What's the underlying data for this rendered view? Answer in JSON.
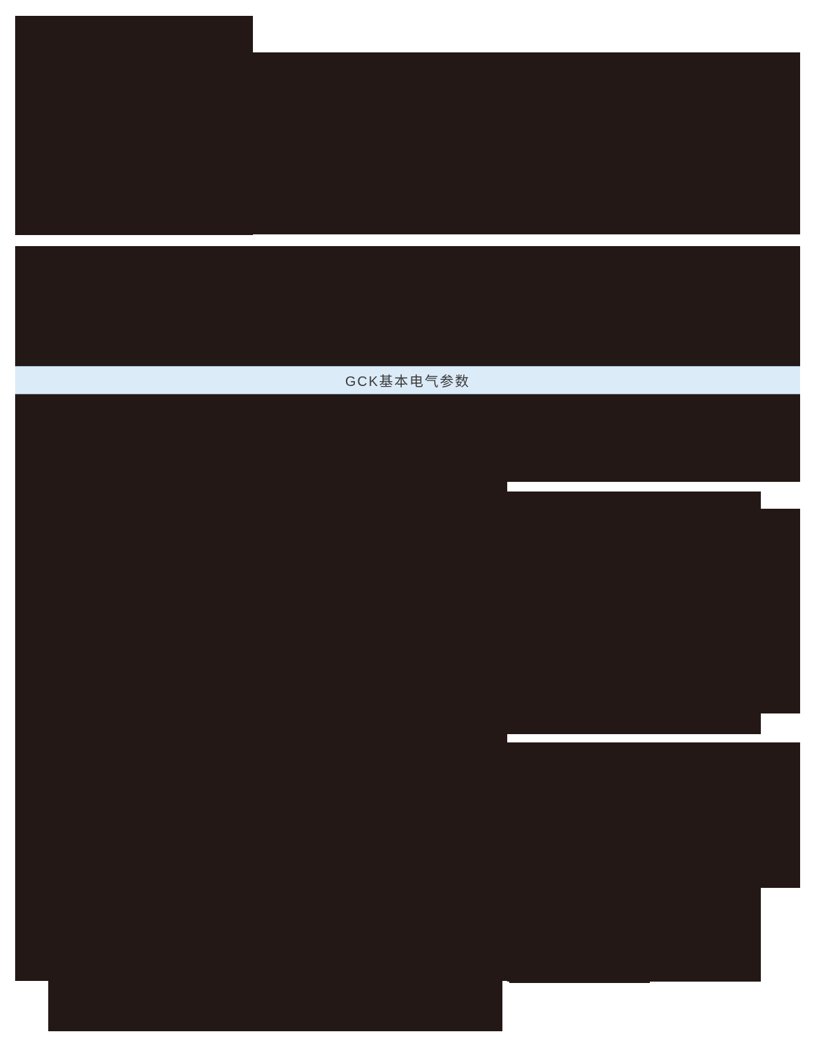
{
  "page": {
    "title_band": {
      "label": "GCK基本电气参数"
    },
    "colors": {
      "background": "#ffffff",
      "block": "#231815",
      "band_bg": "#dcebf8",
      "band_border": "#a3b9cc",
      "band_text": "#3a3a3a"
    }
  }
}
